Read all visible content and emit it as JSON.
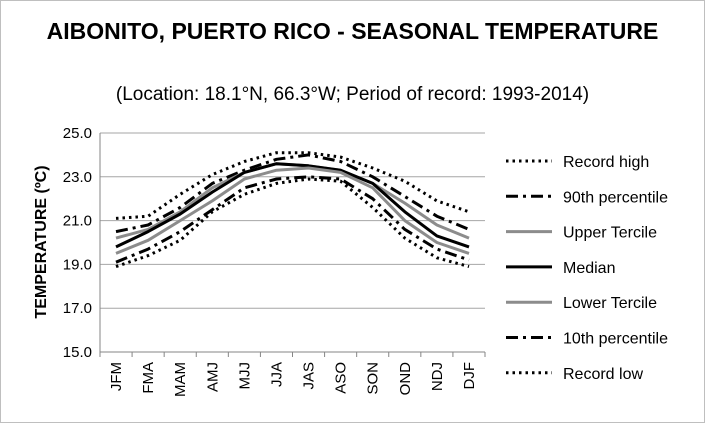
{
  "chart_data": {
    "type": "line",
    "title": "AIBONITO, PUERTO RICO - SEASONAL TEMPERATURE",
    "subtitle": "(Location: 18.1°N, 66.3°W; Period of record: 1993-2014)",
    "ylabel": "TEMPERATURE (ºC)",
    "xlabel": "",
    "ylim": [
      15.0,
      25.0
    ],
    "yticks": [
      "15.0",
      "17.0",
      "19.0",
      "21.0",
      "23.0",
      "25.0"
    ],
    "grid": true,
    "legend": "right",
    "categories": [
      "JFM",
      "FMA",
      "MAM",
      "AMJ",
      "MJJ",
      "JJA",
      "JAS",
      "ASO",
      "SON",
      "OND",
      "NDJ",
      "DJF"
    ],
    "series": [
      {
        "name": "Record high",
        "color": "#000000",
        "style": "dotted",
        "values": [
          21.1,
          21.2,
          22.2,
          23.1,
          23.7,
          24.1,
          24.1,
          23.9,
          23.4,
          22.8,
          21.9,
          21.4
        ]
      },
      {
        "name": "90th percentile",
        "color": "#000000",
        "style": "dashdot",
        "values": [
          20.5,
          20.8,
          21.6,
          22.7,
          23.3,
          23.8,
          24.0,
          23.7,
          23.0,
          22.1,
          21.2,
          20.6
        ]
      },
      {
        "name": "Upper Tercile",
        "color": "#8c8c8c",
        "style": "solid",
        "values": [
          20.2,
          20.6,
          21.4,
          22.5,
          23.2,
          23.6,
          23.5,
          23.3,
          22.7,
          21.8,
          20.8,
          20.2
        ]
      },
      {
        "name": "Median",
        "color": "#000000",
        "style": "solid",
        "values": [
          19.8,
          20.5,
          21.3,
          22.3,
          23.2,
          23.6,
          23.5,
          23.3,
          22.7,
          21.4,
          20.3,
          19.8
        ]
      },
      {
        "name": "Lower Tercile",
        "color": "#8c8c8c",
        "style": "solid",
        "values": [
          19.5,
          20.1,
          21.0,
          21.9,
          22.9,
          23.3,
          23.4,
          23.2,
          22.5,
          21.0,
          20.0,
          19.5
        ]
      },
      {
        "name": "10th percentile",
        "color": "#000000",
        "style": "dashdot",
        "values": [
          19.1,
          19.7,
          20.5,
          21.5,
          22.5,
          22.9,
          23.0,
          22.9,
          22.0,
          20.6,
          19.7,
          19.2
        ]
      },
      {
        "name": "Record low",
        "color": "#000000",
        "style": "dotted",
        "values": [
          18.9,
          19.4,
          20.1,
          21.4,
          22.2,
          22.7,
          22.9,
          22.8,
          21.6,
          20.2,
          19.3,
          18.9
        ]
      }
    ]
  }
}
